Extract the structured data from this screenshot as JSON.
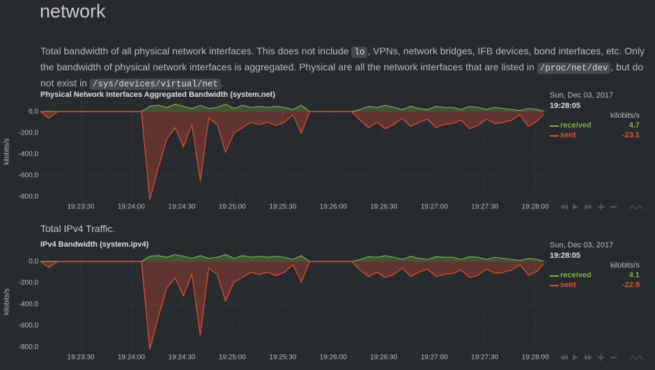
{
  "page": {
    "title": "network",
    "description": [
      {
        "text": "Total bandwidth of all physical network interfaces. This does not include "
      },
      {
        "code": "lo"
      },
      {
        "text": ", VPNs, network bridges, IFB devices, bond interfaces, etc. Only the bandwidth of physical network interfaces is aggregated. Physical are all the network interfaces that are listed in "
      },
      {
        "code": "/proc/net/dev"
      },
      {
        "text": ", but do not exist in "
      },
      {
        "code": "/sys/devices/virtual/net"
      },
      {
        "text": "."
      }
    ],
    "section": "Total IPv4 Traffic."
  },
  "chart_data": [
    {
      "type": "line",
      "title": "Physical Network Interfaces Aggregated Bandwidth (system.net)",
      "date": "Sun, Dec 03, 2017",
      "units": "kilobits/s",
      "y_label": "kilobits/s",
      "x": [
        "19:23:06",
        "19:23:11",
        "19:23:16",
        "19:23:21",
        "19:23:26",
        "19:23:31",
        "19:23:36",
        "19:23:41",
        "19:23:46",
        "19:23:51",
        "19:23:56",
        "19:24:01",
        "19:24:06",
        "19:24:11",
        "19:24:16",
        "19:24:21",
        "19:24:26",
        "19:24:31",
        "19:24:36",
        "19:24:41",
        "19:24:46",
        "19:24:51",
        "19:24:56",
        "19:25:01",
        "19:25:06",
        "19:25:11",
        "19:25:16",
        "19:25:21",
        "19:25:26",
        "19:25:31",
        "19:25:36",
        "19:25:41",
        "19:25:46",
        "19:25:51",
        "19:25:56",
        "19:26:01",
        "19:26:06",
        "19:26:11",
        "19:26:16",
        "19:26:21",
        "19:26:26",
        "19:26:31",
        "19:26:36",
        "19:26:41",
        "19:26:46",
        "19:26:51",
        "19:26:56",
        "19:27:01",
        "19:27:06",
        "19:27:11",
        "19:27:16",
        "19:27:21",
        "19:27:26",
        "19:27:31",
        "19:27:36",
        "19:27:41",
        "19:27:46",
        "19:27:51",
        "19:27:56",
        "19:28:01",
        "19:28:05"
      ],
      "xlim": [
        "19:23:06",
        "19:28:07"
      ],
      "xticks": [
        "19:23:30",
        "19:24:00",
        "19:24:30",
        "19:25:00",
        "19:25:30",
        "19:26:00",
        "19:26:30",
        "19:27:00",
        "19:27:30",
        "19:28:00"
      ],
      "ylim": [
        -850,
        100
      ],
      "yticks": [
        {
          "value": 0,
          "label": "0.0"
        },
        {
          "value": -200,
          "label": "-200.0"
        },
        {
          "value": -400,
          "label": "-400.0"
        },
        {
          "value": -600,
          "label": "-600.0"
        },
        {
          "value": -800,
          "label": "-800.0"
        }
      ],
      "grid": true,
      "series": [
        {
          "name": "received",
          "color": "#7cb342",
          "values": [
            0,
            2,
            0,
            0,
            0,
            0,
            0,
            0,
            0,
            0,
            0,
            0,
            0,
            50,
            60,
            40,
            70,
            50,
            30,
            60,
            30,
            40,
            70,
            30,
            60,
            40,
            50,
            40,
            50,
            40,
            20,
            60,
            0,
            0,
            0,
            0,
            0,
            0,
            20,
            50,
            40,
            60,
            40,
            20,
            50,
            30,
            20,
            50,
            40,
            40,
            20,
            50,
            40,
            20,
            40,
            30,
            20,
            10,
            30,
            20,
            4.7
          ]
        },
        {
          "name": "sent",
          "color": "#e8502b",
          "values": [
            0,
            -60,
            0,
            0,
            0,
            0,
            0,
            0,
            0,
            0,
            0,
            0,
            0,
            -830,
            -530,
            -260,
            -150,
            -330,
            -120,
            -650,
            -60,
            -120,
            -380,
            -200,
            -150,
            -100,
            -120,
            -100,
            -130,
            -100,
            -30,
            -200,
            0,
            0,
            0,
            0,
            0,
            0,
            -80,
            -150,
            -100,
            -160,
            -120,
            -60,
            -140,
            -100,
            -70,
            -150,
            -120,
            -110,
            -80,
            -160,
            -130,
            -70,
            -110,
            -100,
            -80,
            -30,
            -140,
            -90,
            -23.1
          ]
        }
      ]
    },
    {
      "type": "line",
      "title": "IPv4 Bandwidth (system.ipv4)",
      "date": "Sun, Dec 03, 2017",
      "units": "kilobits/s",
      "y_label": "kilobits/s",
      "x": [
        "19:23:06",
        "19:23:11",
        "19:23:16",
        "19:23:21",
        "19:23:26",
        "19:23:31",
        "19:23:36",
        "19:23:41",
        "19:23:46",
        "19:23:51",
        "19:23:56",
        "19:24:01",
        "19:24:06",
        "19:24:11",
        "19:24:16",
        "19:24:21",
        "19:24:26",
        "19:24:31",
        "19:24:36",
        "19:24:41",
        "19:24:46",
        "19:24:51",
        "19:24:56",
        "19:25:01",
        "19:25:06",
        "19:25:11",
        "19:25:16",
        "19:25:21",
        "19:25:26",
        "19:25:31",
        "19:25:36",
        "19:25:41",
        "19:25:46",
        "19:25:51",
        "19:25:56",
        "19:26:01",
        "19:26:06",
        "19:26:11",
        "19:26:16",
        "19:26:21",
        "19:26:26",
        "19:26:31",
        "19:26:36",
        "19:26:41",
        "19:26:46",
        "19:26:51",
        "19:26:56",
        "19:27:01",
        "19:27:06",
        "19:27:11",
        "19:27:16",
        "19:27:21",
        "19:27:26",
        "19:27:31",
        "19:27:36",
        "19:27:41",
        "19:27:46",
        "19:27:51",
        "19:27:56",
        "19:28:01",
        "19:28:05"
      ],
      "xlim": [
        "19:23:06",
        "19:28:07"
      ],
      "xticks": [
        "19:23:30",
        "19:24:00",
        "19:24:30",
        "19:25:00",
        "19:25:30",
        "19:26:00",
        "19:26:30",
        "19:27:00",
        "19:27:30",
        "19:28:00"
      ],
      "ylim": [
        -850,
        100
      ],
      "yticks": [
        {
          "value": 0,
          "label": "0.0"
        },
        {
          "value": -200,
          "label": "-200.0"
        },
        {
          "value": -400,
          "label": "-400.0"
        },
        {
          "value": -600,
          "label": "-600.0"
        },
        {
          "value": -800,
          "label": "-800.0"
        }
      ],
      "grid": true,
      "series": [
        {
          "name": "received",
          "color": "#7cb342",
          "values": [
            0,
            2,
            0,
            0,
            0,
            0,
            0,
            0,
            0,
            0,
            0,
            0,
            0,
            50,
            55,
            40,
            65,
            50,
            30,
            55,
            30,
            40,
            65,
            30,
            55,
            40,
            50,
            40,
            50,
            40,
            20,
            55,
            0,
            0,
            0,
            0,
            0,
            0,
            20,
            45,
            40,
            55,
            40,
            20,
            50,
            30,
            20,
            45,
            40,
            40,
            20,
            45,
            40,
            20,
            40,
            30,
            20,
            10,
            30,
            20,
            4.1
          ]
        },
        {
          "name": "sent",
          "color": "#e8502b",
          "values": [
            0,
            -55,
            0,
            0,
            0,
            0,
            0,
            0,
            0,
            0,
            0,
            0,
            0,
            -820,
            -520,
            -250,
            -150,
            -320,
            -120,
            -690,
            -60,
            -120,
            -370,
            -190,
            -150,
            -100,
            -120,
            -100,
            -130,
            -100,
            -30,
            -190,
            0,
            0,
            0,
            0,
            0,
            0,
            -80,
            -140,
            -100,
            -150,
            -120,
            -60,
            -140,
            -100,
            -70,
            -140,
            -120,
            -110,
            -80,
            -150,
            -130,
            -70,
            -110,
            -100,
            -80,
            -30,
            -130,
            -90,
            -22.9
          ]
        }
      ]
    }
  ]
}
